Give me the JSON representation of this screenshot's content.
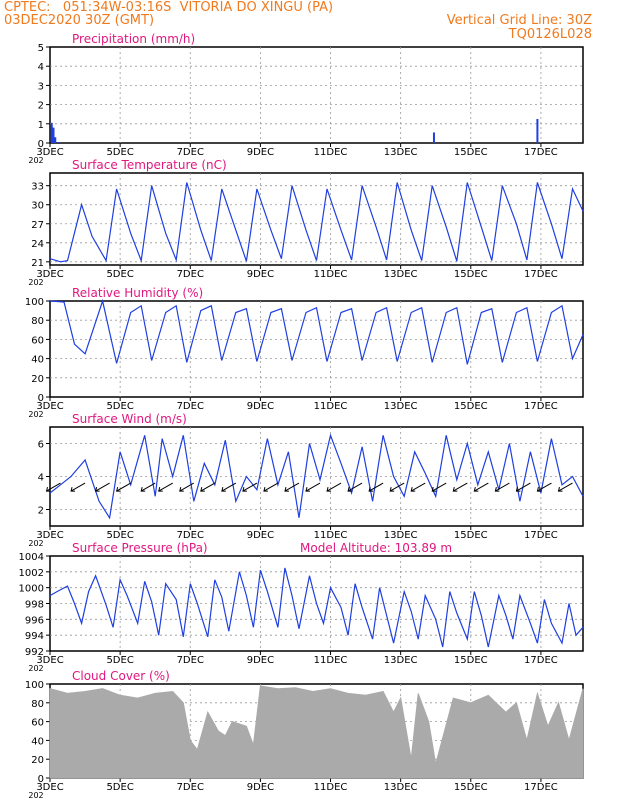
{
  "header": {
    "line1": "CPTEC:   051:34W-03:16S  VITORIA DO XINGU (PA)",
    "line2": "03DEC2020 30Z (GMT)",
    "grid_note": "Vertical Grid Line: 30Z",
    "code": "TQ0126L028",
    "model_altitude": "Model Altitude: 103.89 m"
  },
  "colors": {
    "header": "#f07a1e",
    "panel_title": "#e0177f",
    "series": "#1f3fe0",
    "cloud": "#aaaaaa",
    "arrow": "#000000"
  },
  "x_axis": {
    "tick_labels": [
      "3DEC",
      "5DEC",
      "7DEC",
      "9DEC",
      "11DEC",
      "13DEC",
      "15DEC",
      "17DEC"
    ],
    "tick_days": [
      3,
      5,
      7,
      9,
      11,
      13,
      15,
      17
    ],
    "year_label": "202",
    "range_days": [
      3,
      18.2
    ]
  },
  "chart_data": [
    {
      "type": "bar",
      "title": "Precipitation (mm/h)",
      "ylim": [
        0,
        5
      ],
      "yticks": [
        0,
        1,
        2,
        3,
        4,
        5
      ],
      "grid": true,
      "series": [
        {
          "x": [
            3.05,
            3.1,
            3.15,
            3.25,
            13.95,
            16.9
          ],
          "values": [
            1.05,
            0.8,
            0.3,
            0.05,
            0.55,
            1.25
          ]
        }
      ]
    },
    {
      "type": "line",
      "title": "Surface Temperature (nC)",
      "ylim": [
        20.5,
        35
      ],
      "yticks": [
        21,
        24,
        27,
        30,
        33
      ],
      "grid": true,
      "series": [
        {
          "x": [
            3.0,
            3.3,
            3.5,
            3.9,
            4.2,
            4.6,
            4.9,
            5.3,
            5.6,
            5.9,
            6.3,
            6.6,
            6.9,
            7.3,
            7.6,
            7.9,
            8.3,
            8.6,
            8.9,
            9.3,
            9.6,
            9.9,
            10.3,
            10.6,
            10.9,
            11.3,
            11.6,
            11.9,
            12.3,
            12.6,
            12.9,
            13.3,
            13.6,
            13.9,
            14.3,
            14.6,
            14.9,
            15.3,
            15.6,
            15.9,
            16.3,
            16.6,
            16.9,
            17.3,
            17.6,
            17.9,
            18.2
          ],
          "values": [
            21.5,
            21.0,
            21.2,
            30.0,
            25.0,
            21.2,
            32.5,
            25.5,
            21.2,
            33.0,
            25.5,
            21.3,
            33.5,
            26.0,
            21.2,
            32.5,
            26.0,
            21.1,
            32.5,
            26.0,
            21.5,
            33.0,
            26.0,
            21.2,
            32.5,
            26.0,
            21.3,
            33.0,
            26.5,
            21.3,
            33.5,
            26.0,
            21.2,
            33.0,
            26.5,
            21.1,
            33.5,
            26.5,
            21.2,
            33.0,
            27.0,
            21.3,
            33.5,
            27.0,
            21.5,
            32.5,
            29.0
          ]
        }
      ]
    },
    {
      "type": "line",
      "title": "Relative Humidity (%)",
      "ylim": [
        0,
        100
      ],
      "yticks": [
        0,
        20,
        40,
        60,
        80,
        100
      ],
      "grid": true,
      "series": [
        {
          "x": [
            3.0,
            3.4,
            3.7,
            4.0,
            4.5,
            4.9,
            5.3,
            5.6,
            5.9,
            6.3,
            6.6,
            6.9,
            7.3,
            7.6,
            7.9,
            8.3,
            8.6,
            8.9,
            9.3,
            9.6,
            9.9,
            10.3,
            10.6,
            10.9,
            11.3,
            11.6,
            11.9,
            12.3,
            12.6,
            12.9,
            13.3,
            13.6,
            13.9,
            14.3,
            14.6,
            14.9,
            15.3,
            15.6,
            15.9,
            16.3,
            16.6,
            16.9,
            17.3,
            17.6,
            17.9,
            18.2
          ],
          "values": [
            100,
            99,
            55,
            45,
            100,
            35,
            88,
            95,
            38,
            88,
            95,
            36,
            90,
            95,
            38,
            88,
            92,
            37,
            88,
            92,
            38,
            88,
            93,
            37,
            88,
            92,
            38,
            88,
            93,
            37,
            88,
            93,
            36,
            88,
            93,
            34,
            88,
            92,
            36,
            88,
            93,
            37,
            88,
            95,
            40,
            65
          ]
        }
      ]
    },
    {
      "type": "line",
      "title": "Surface Wind (m/s)",
      "ylim": [
        1,
        7
      ],
      "yticks": [
        2,
        4,
        6
      ],
      "grid": true,
      "series": [
        {
          "x": [
            3.0,
            3.3,
            3.6,
            4.0,
            4.4,
            4.7,
            5.0,
            5.3,
            5.7,
            6.0,
            6.2,
            6.5,
            6.8,
            7.1,
            7.4,
            7.7,
            8.0,
            8.3,
            8.6,
            8.9,
            9.2,
            9.5,
            9.8,
            10.1,
            10.4,
            10.7,
            11.0,
            11.3,
            11.6,
            11.9,
            12.2,
            12.5,
            12.8,
            13.1,
            13.4,
            13.7,
            14.0,
            14.3,
            14.6,
            14.9,
            15.2,
            15.5,
            15.8,
            16.1,
            16.4,
            16.7,
            17.0,
            17.3,
            17.6,
            17.9,
            18.2
          ],
          "values": [
            3.0,
            3.5,
            4.0,
            5.0,
            2.5,
            1.5,
            5.5,
            3.5,
            6.5,
            2.8,
            6.3,
            4.0,
            6.5,
            2.5,
            4.8,
            3.5,
            6.2,
            2.5,
            4.0,
            3.2,
            6.3,
            3.5,
            5.5,
            1.5,
            6.0,
            3.8,
            6.5,
            4.8,
            3.0,
            5.8,
            2.5,
            6.5,
            4.0,
            2.8,
            5.5,
            4.2,
            2.8,
            6.5,
            3.8,
            6.0,
            3.5,
            5.5,
            3.2,
            6.0,
            2.5,
            5.5,
            3.0,
            6.3,
            3.5,
            4.0,
            2.8
          ]
        }
      ],
      "wind_barbs": "direction arrows along series"
    },
    {
      "type": "line",
      "title": "Surface Pressure (hPa)",
      "ylim": [
        992,
        1004
      ],
      "yticks": [
        992,
        994,
        996,
        998,
        1000,
        1002,
        1004
      ],
      "grid": true,
      "series": [
        {
          "x": [
            3.0,
            3.2,
            3.5,
            3.7,
            3.9,
            4.1,
            4.3,
            4.6,
            4.8,
            5.0,
            5.2,
            5.5,
            5.7,
            5.9,
            6.1,
            6.3,
            6.6,
            6.8,
            7.0,
            7.2,
            7.5,
            7.7,
            7.9,
            8.1,
            8.4,
            8.6,
            8.8,
            9.0,
            9.2,
            9.5,
            9.7,
            9.9,
            10.1,
            10.4,
            10.6,
            10.8,
            11.0,
            11.3,
            11.5,
            11.7,
            11.9,
            12.2,
            12.4,
            12.6,
            12.8,
            13.1,
            13.3,
            13.5,
            13.7,
            14.0,
            14.2,
            14.4,
            14.6,
            14.9,
            15.1,
            15.3,
            15.5,
            15.8,
            16.0,
            16.2,
            16.4,
            16.7,
            16.9,
            17.1,
            17.3,
            17.6,
            17.8,
            18.0,
            18.2
          ],
          "values": [
            999,
            999.5,
            1000.2,
            998,
            995.5,
            999.5,
            1001.5,
            997.8,
            995.0,
            1001.0,
            999.0,
            995.5,
            1000.8,
            998.2,
            994.0,
            1000.5,
            998.5,
            993.8,
            1000.5,
            998.0,
            993.8,
            1001.0,
            998.8,
            994.5,
            1002.0,
            999.0,
            995.0,
            1002.2,
            999.5,
            995.0,
            1002.5,
            999.0,
            994.8,
            1001.5,
            998.0,
            995.5,
            1000.0,
            997.5,
            994.0,
            1000.5,
            997.5,
            993.5,
            1000.0,
            996.5,
            993.0,
            999.5,
            997.0,
            993.5,
            999.0,
            996.0,
            992.5,
            999.5,
            996.8,
            993.5,
            999.5,
            996.5,
            992.5,
            999.0,
            996.5,
            993.5,
            999.0,
            995.5,
            993.0,
            998.5,
            995.5,
            993.0,
            998.0,
            994.0,
            995.0
          ]
        }
      ]
    },
    {
      "type": "area",
      "title": "Cloud Cover (%)",
      "ylim": [
        0,
        100
      ],
      "yticks": [
        0,
        20,
        40,
        60,
        80,
        100
      ],
      "grid": true,
      "series": [
        {
          "x": [
            3.0,
            3.5,
            4.0,
            4.5,
            5.0,
            5.5,
            6.0,
            6.5,
            6.8,
            7.0,
            7.2,
            7.5,
            7.8,
            8.0,
            8.2,
            8.6,
            8.8,
            9.0,
            9.5,
            10.0,
            10.5,
            11.0,
            11.5,
            12.0,
            12.5,
            12.8,
            13.0,
            13.3,
            13.5,
            13.8,
            14.0,
            14.5,
            15.0,
            15.5,
            16.0,
            16.3,
            16.6,
            16.9,
            17.2,
            17.5,
            17.8,
            18.2
          ],
          "values": [
            95,
            90,
            92,
            95,
            88,
            85,
            90,
            92,
            80,
            40,
            30,
            70,
            50,
            45,
            60,
            55,
            35,
            98,
            95,
            96,
            92,
            95,
            90,
            88,
            92,
            70,
            85,
            20,
            90,
            60,
            15,
            85,
            80,
            88,
            70,
            80,
            40,
            90,
            55,
            80,
            40,
            95
          ]
        }
      ]
    }
  ]
}
